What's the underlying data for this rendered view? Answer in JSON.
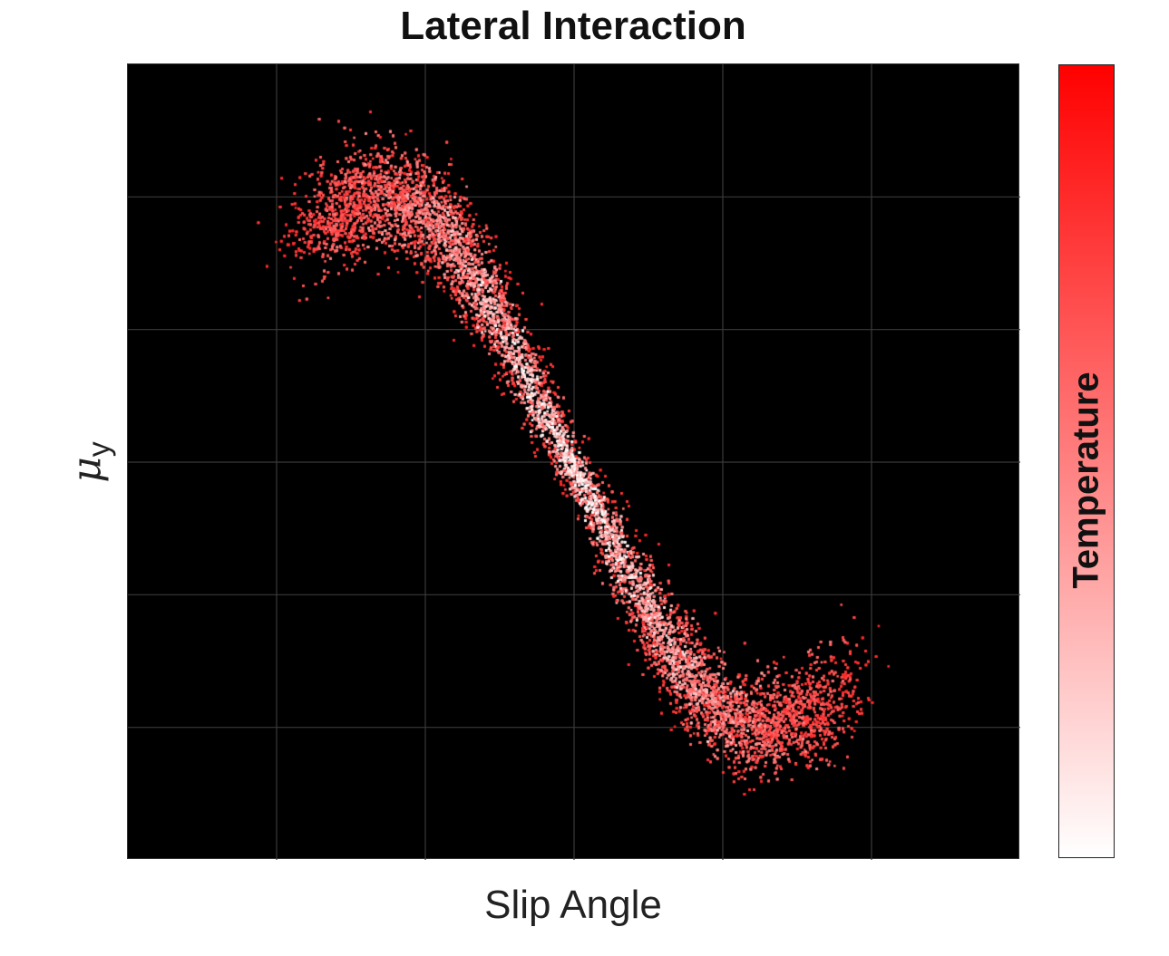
{
  "chart_data": {
    "type": "scatter",
    "title": "Lateral Interaction",
    "xlabel": "Slip Angle",
    "ylabel_symbol": "μ",
    "ylabel_subscript": "y",
    "colorbar_label": "Temperature",
    "colorbar_colors": [
      "#ff0000",
      "#ffffff"
    ],
    "xlim": [
      -3,
      3
    ],
    "ylim": [
      -3,
      3
    ],
    "grid": true,
    "background": "#000000",
    "curve": {
      "x": [
        -1.75,
        -1.55,
        -1.35,
        -1.15,
        -0.95,
        -0.8,
        -0.65,
        -0.5,
        -0.3,
        -0.1,
        0.1,
        0.3,
        0.5,
        0.65,
        0.8,
        0.95,
        1.15,
        1.35,
        1.55,
        1.8
      ],
      "y": [
        1.75,
        1.95,
        2.0,
        1.98,
        1.85,
        1.65,
        1.35,
        1.05,
        0.6,
        0.15,
        -0.25,
        -0.7,
        -1.1,
        -1.4,
        -1.65,
        -1.85,
        -1.98,
        -2.0,
        -1.92,
        -1.75
      ]
    },
    "point_count": 22000
  }
}
